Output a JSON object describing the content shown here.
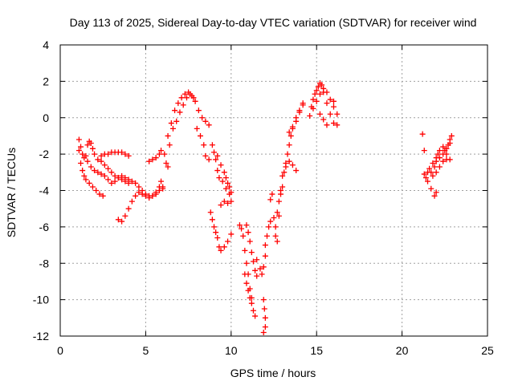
{
  "chart_data": {
    "type": "scatter",
    "title": "Day 113 of 2025, Sidereal Day-to-day VTEC variation (SDTVAR) for receiver wind",
    "xlabel": "GPS time / hours",
    "ylabel": "SDTVAR / TECUs",
    "xlim": [
      0,
      25
    ],
    "ylim": [
      -12,
      4
    ],
    "xticks": [
      "0",
      "5",
      "10",
      "15",
      "20",
      "25"
    ],
    "yticks": [
      "4",
      "2",
      "0",
      "-2",
      "-4",
      "-6",
      "-8",
      "-10",
      "-12"
    ],
    "grid": true,
    "marker": "+",
    "color": "#ff0000",
    "series": [
      {
        "points": [
          [
            1.1,
            -1.2
          ],
          [
            1.2,
            -1.6
          ],
          [
            1.3,
            -2.0
          ],
          [
            1.4,
            -2.2
          ],
          [
            1.5,
            -2.1
          ],
          [
            1.6,
            -1.5
          ],
          [
            1.7,
            -1.3
          ],
          [
            1.8,
            -1.4
          ],
          [
            1.9,
            -1.7
          ],
          [
            2.0,
            -2.0
          ],
          [
            2.2,
            -2.3
          ],
          [
            2.4,
            -2.1
          ],
          [
            2.6,
            -2.0
          ],
          [
            2.8,
            -2.0
          ],
          [
            3.0,
            -1.9
          ],
          [
            3.2,
            -1.9
          ],
          [
            3.4,
            -1.9
          ],
          [
            3.6,
            -1.9
          ],
          [
            3.8,
            -2.0
          ],
          [
            4.0,
            -2.1
          ],
          [
            1.1,
            -1.8
          ],
          [
            1.2,
            -2.5
          ],
          [
            1.3,
            -2.9
          ],
          [
            1.4,
            -3.2
          ],
          [
            1.5,
            -3.4
          ],
          [
            1.7,
            -3.6
          ],
          [
            1.9,
            -3.8
          ],
          [
            2.1,
            -4.0
          ],
          [
            2.3,
            -4.2
          ],
          [
            2.5,
            -4.3
          ],
          [
            1.6,
            -2.4
          ],
          [
            1.8,
            -2.7
          ],
          [
            2.0,
            -2.9
          ],
          [
            2.2,
            -3.0
          ],
          [
            2.4,
            -3.1
          ],
          [
            2.6,
            -3.2
          ],
          [
            2.8,
            -3.4
          ],
          [
            3.0,
            -3.6
          ],
          [
            3.2,
            -3.5
          ],
          [
            3.4,
            -3.3
          ],
          [
            3.6,
            -3.2
          ],
          [
            3.8,
            -3.3
          ],
          [
            4.0,
            -3.4
          ],
          [
            4.2,
            -3.5
          ],
          [
            4.4,
            -3.6
          ],
          [
            4.6,
            -3.8
          ],
          [
            4.8,
            -4.0
          ],
          [
            5.0,
            -4.2
          ],
          [
            5.2,
            -4.3
          ],
          [
            5.4,
            -4.3
          ],
          [
            5.6,
            -4.1
          ],
          [
            5.8,
            -3.8
          ],
          [
            5.9,
            -3.5
          ],
          [
            6.0,
            -3.9
          ],
          [
            2.4,
            -2.4
          ],
          [
            2.6,
            -2.6
          ],
          [
            2.8,
            -2.8
          ],
          [
            3.0,
            -3.0
          ],
          [
            3.2,
            -3.2
          ],
          [
            3.4,
            -3.3
          ],
          [
            3.6,
            -3.4
          ],
          [
            3.8,
            -3.5
          ],
          [
            4.0,
            -3.6
          ],
          [
            3.4,
            -5.6
          ],
          [
            3.6,
            -5.7
          ],
          [
            3.8,
            -5.4
          ],
          [
            4.0,
            -5.0
          ],
          [
            4.2,
            -4.6
          ],
          [
            4.4,
            -4.3
          ],
          [
            4.6,
            -4.1
          ],
          [
            4.8,
            -4.2
          ],
          [
            5.0,
            -4.3
          ],
          [
            5.2,
            -4.4
          ],
          [
            5.4,
            -4.3
          ],
          [
            5.6,
            -4.2
          ],
          [
            5.8,
            -4.0
          ],
          [
            6.0,
            -3.8
          ],
          [
            5.2,
            -2.4
          ],
          [
            5.4,
            -2.3
          ],
          [
            5.6,
            -2.2
          ],
          [
            5.8,
            -2.0
          ],
          [
            5.9,
            -1.8
          ],
          [
            6.1,
            -2.0
          ],
          [
            6.2,
            -2.5
          ],
          [
            6.3,
            -2.7
          ],
          [
            6.4,
            -1.5
          ],
          [
            6.6,
            -0.6
          ],
          [
            6.8,
            -0.2
          ],
          [
            7.0,
            0.3
          ],
          [
            7.2,
            0.7
          ],
          [
            7.4,
            1.1
          ],
          [
            7.6,
            1.3
          ],
          [
            7.8,
            1.1
          ],
          [
            6.3,
            -1.0
          ],
          [
            6.5,
            -0.3
          ],
          [
            6.7,
            0.4
          ],
          [
            6.9,
            0.8
          ],
          [
            7.1,
            1.1
          ],
          [
            7.3,
            1.3
          ],
          [
            7.5,
            1.4
          ],
          [
            7.7,
            1.2
          ],
          [
            7.9,
            0.9
          ],
          [
            8.1,
            0.4
          ],
          [
            8.3,
            0.0
          ],
          [
            8.5,
            -0.2
          ],
          [
            8.7,
            -0.4
          ],
          [
            8.0,
            -0.6
          ],
          [
            8.2,
            -1.0
          ],
          [
            8.4,
            -1.5
          ],
          [
            8.5,
            -2.1
          ],
          [
            8.7,
            -2.3
          ],
          [
            9.0,
            -1.9
          ],
          [
            9.2,
            -2.1
          ],
          [
            9.4,
            -2.6
          ],
          [
            9.6,
            -3.0
          ],
          [
            9.7,
            -3.3
          ],
          [
            9.8,
            -3.6
          ],
          [
            9.9,
            -3.8
          ],
          [
            10.0,
            -4.1
          ],
          [
            8.9,
            -1.5
          ],
          [
            9.1,
            -2.3
          ],
          [
            9.2,
            -2.9
          ],
          [
            9.3,
            -3.3
          ],
          [
            9.5,
            -3.5
          ],
          [
            9.7,
            -3.9
          ],
          [
            9.9,
            -4.2
          ],
          [
            8.8,
            -5.2
          ],
          [
            8.9,
            -5.6
          ],
          [
            9.0,
            -6.0
          ],
          [
            9.1,
            -6.3
          ],
          [
            9.2,
            -6.6
          ],
          [
            9.3,
            -7.1
          ],
          [
            9.4,
            -7.3
          ],
          [
            9.6,
            -7.1
          ],
          [
            9.8,
            -6.8
          ],
          [
            10.0,
            -6.4
          ],
          [
            9.4,
            -4.8
          ],
          [
            9.6,
            -4.6
          ],
          [
            9.8,
            -4.7
          ],
          [
            10.0,
            -4.6
          ],
          [
            10.5,
            -5.9
          ],
          [
            10.6,
            -6.1
          ],
          [
            10.7,
            -6.5
          ],
          [
            10.8,
            -7.3
          ],
          [
            10.9,
            -8.0
          ],
          [
            11.0,
            -8.6
          ],
          [
            11.1,
            -9.4
          ],
          [
            11.2,
            -9.9
          ],
          [
            11.3,
            -10.6
          ],
          [
            11.4,
            -10.9
          ],
          [
            10.8,
            -8.6
          ],
          [
            10.9,
            -9.1
          ],
          [
            11.0,
            -9.5
          ],
          [
            11.1,
            -9.9
          ],
          [
            11.2,
            -10.2
          ],
          [
            10.9,
            -5.9
          ],
          [
            11.0,
            -6.3
          ],
          [
            11.1,
            -6.8
          ],
          [
            11.2,
            -7.4
          ],
          [
            11.3,
            -7.9
          ],
          [
            11.4,
            -8.4
          ],
          [
            11.5,
            -8.7
          ],
          [
            11.5,
            -7.8
          ],
          [
            11.7,
            -8.3
          ],
          [
            11.8,
            -8.6
          ],
          [
            11.9,
            -8.2
          ],
          [
            12.0,
            -7.6
          ],
          [
            12.0,
            -7.0
          ],
          [
            12.1,
            -6.5
          ],
          [
            12.2,
            -6.0
          ],
          [
            12.3,
            -5.7
          ],
          [
            11.9,
            -10.0
          ],
          [
            11.95,
            -10.5
          ],
          [
            12.0,
            -11.0
          ],
          [
            12.0,
            -11.5
          ],
          [
            11.9,
            -11.8
          ],
          [
            12.5,
            -5.5
          ],
          [
            12.6,
            -6.0
          ],
          [
            12.7,
            -5.2
          ],
          [
            12.8,
            -4.6
          ],
          [
            12.9,
            -4.2
          ],
          [
            13.0,
            -3.8
          ],
          [
            13.1,
            -3.0
          ],
          [
            13.2,
            -2.5
          ],
          [
            13.3,
            -2.0
          ],
          [
            13.4,
            -1.5
          ],
          [
            13.5,
            -1.0
          ],
          [
            13.6,
            -0.6
          ],
          [
            13.8,
            -0.2
          ],
          [
            14.0,
            0.3
          ],
          [
            14.2,
            0.7
          ],
          [
            12.6,
            -6.5
          ],
          [
            12.7,
            -6.8
          ],
          [
            12.8,
            -5.4
          ],
          [
            12.9,
            -4.0
          ],
          [
            13.0,
            -3.2
          ],
          [
            13.2,
            -2.7
          ],
          [
            13.4,
            -2.4
          ],
          [
            13.6,
            -2.6
          ],
          [
            13.8,
            -2.9
          ],
          [
            12.3,
            -4.5
          ],
          [
            12.4,
            -4.2
          ],
          [
            13.4,
            -0.8
          ],
          [
            13.6,
            -0.5
          ],
          [
            13.8,
            0.0
          ],
          [
            14.0,
            0.4
          ],
          [
            14.2,
            0.8
          ],
          [
            14.6,
            0.1
          ],
          [
            14.7,
            0.6
          ],
          [
            14.8,
            1.0
          ],
          [
            14.9,
            1.3
          ],
          [
            15.0,
            1.5
          ],
          [
            15.1,
            1.7
          ],
          [
            15.2,
            1.9
          ],
          [
            15.3,
            1.8
          ],
          [
            15.4,
            1.4
          ],
          [
            15.6,
            0.8
          ],
          [
            15.8,
            0.2
          ],
          [
            16.0,
            -0.3
          ],
          [
            14.8,
            0.5
          ],
          [
            15.0,
            0.9
          ],
          [
            15.2,
            1.3
          ],
          [
            15.4,
            1.6
          ],
          [
            15.6,
            1.4
          ],
          [
            15.8,
            1.0
          ],
          [
            16.0,
            0.6
          ],
          [
            16.2,
            0.2
          ],
          [
            15.2,
            0.2
          ],
          [
            15.4,
            -0.1
          ],
          [
            15.6,
            -0.4
          ],
          [
            16.2,
            -0.4
          ],
          [
            16.0,
            0.9
          ],
          [
            21.2,
            -0.9
          ],
          [
            21.3,
            -1.8
          ],
          [
            21.4,
            -3.3
          ],
          [
            21.5,
            -3.0
          ],
          [
            21.6,
            -2.8
          ],
          [
            21.7,
            -3.0
          ],
          [
            21.8,
            -3.2
          ],
          [
            22.0,
            -3.0
          ],
          [
            22.2,
            -2.7
          ],
          [
            22.4,
            -2.4
          ],
          [
            22.6,
            -2.3
          ],
          [
            22.8,
            -2.3
          ],
          [
            21.3,
            -3.1
          ],
          [
            21.5,
            -3.5
          ],
          [
            21.7,
            -3.9
          ],
          [
            21.9,
            -4.3
          ],
          [
            22.0,
            -4.1
          ],
          [
            21.9,
            -2.7
          ],
          [
            22.0,
            -2.2
          ],
          [
            22.1,
            -2.0
          ],
          [
            22.2,
            -1.8
          ],
          [
            22.4,
            -1.6
          ],
          [
            22.5,
            -1.8
          ],
          [
            22.6,
            -2.0
          ],
          [
            22.7,
            -1.5
          ],
          [
            22.8,
            -1.2
          ],
          [
            22.9,
            -1.0
          ],
          [
            21.8,
            -2.5
          ],
          [
            22.0,
            -2.4
          ],
          [
            22.2,
            -2.2
          ],
          [
            22.4,
            -2.0
          ],
          [
            22.6,
            -1.7
          ],
          [
            22.8,
            -1.4
          ]
        ]
      }
    ]
  }
}
